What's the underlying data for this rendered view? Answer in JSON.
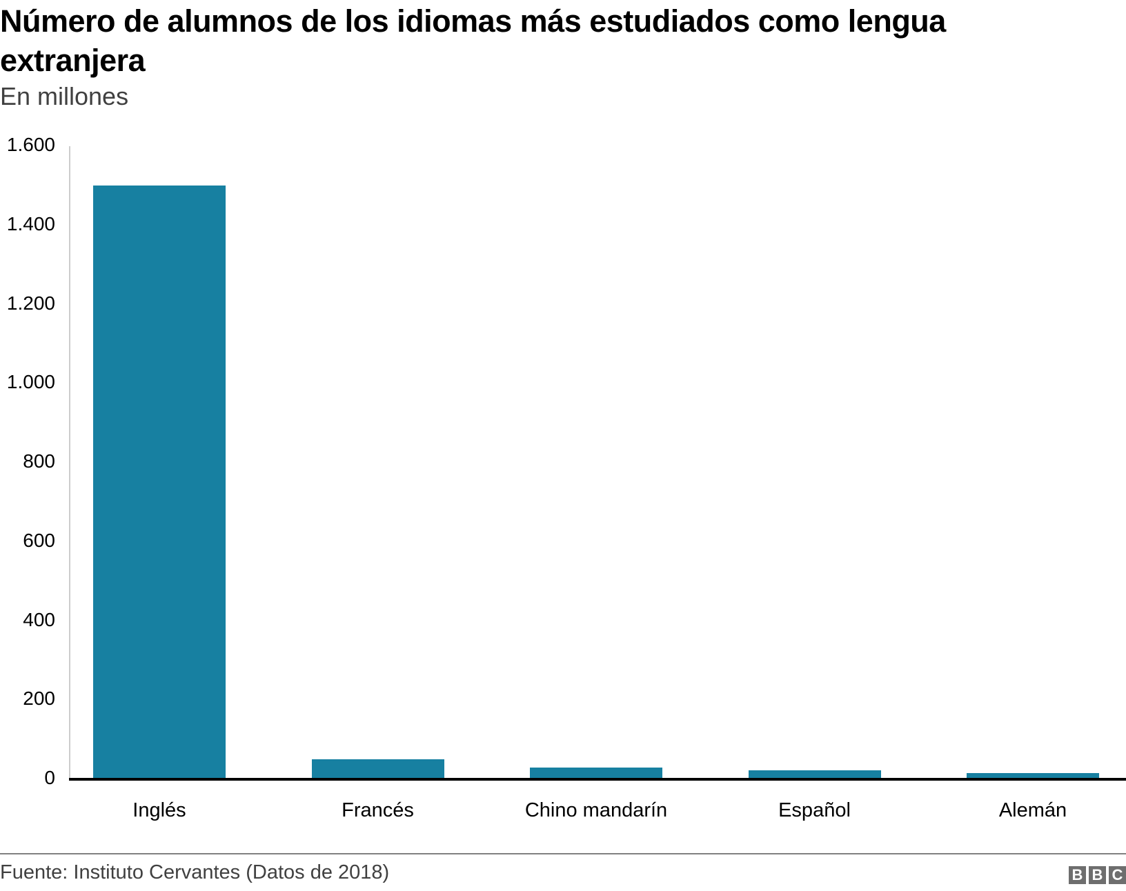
{
  "header": {
    "title": "Número de alumnos de los idiomas más estudiados como lengua extranjera",
    "subtitle": "En millones"
  },
  "footer": {
    "source": "Fuente: Instituto Cervantes (Datos de 2018)",
    "logo_letters": [
      "B",
      "B",
      "C"
    ]
  },
  "colors": {
    "bar": "#1780a1",
    "axis": "#000000",
    "gridline": "#cccccc",
    "logo": "#6e6e6e"
  },
  "axis": {
    "y_ticks": [
      "1.600",
      "1.400",
      "1.200",
      "1.000",
      "800",
      "600",
      "400",
      "200",
      "0"
    ]
  },
  "chart_data": {
    "type": "bar",
    "title": "Número de alumnos de los idiomas más estudiados como lengua extranjera",
    "subtitle": "En millones",
    "xlabel": "",
    "ylabel": "",
    "categories": [
      "Inglés",
      "Francés",
      "Chino mandarín",
      "Español",
      "Alemán"
    ],
    "values": [
      1500,
      50,
      30,
      22,
      15
    ],
    "ylim": [
      0,
      1600
    ],
    "y_tick_values": [
      0,
      200,
      400,
      600,
      800,
      1000,
      1200,
      1400,
      1600
    ],
    "grid": false,
    "legend": null,
    "source": "Fuente: Instituto Cervantes (Datos de 2018)"
  }
}
